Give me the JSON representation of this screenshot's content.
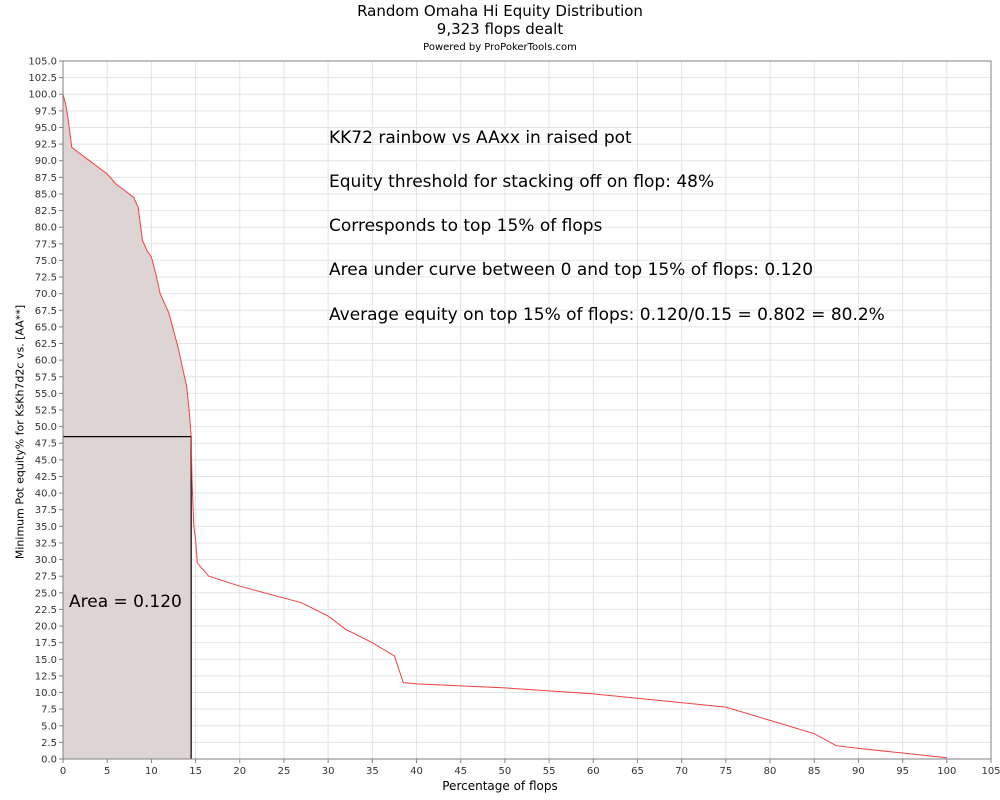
{
  "chart_data": {
    "type": "area",
    "title": "Random Omaha Hi Equity Distribution",
    "subtitle": "9,323 flops dealt",
    "credit": "Powered by ProPokerTools.com",
    "xlabel": "Percentage of flops",
    "ylabel": "Minimum Pot equity% for KsKh7d2c vs. [AA**]",
    "xlim": [
      0,
      105
    ],
    "ylim": [
      0,
      105
    ],
    "x_ticks": [
      "0",
      "5",
      "10",
      "15",
      "20",
      "25",
      "30",
      "35",
      "40",
      "45",
      "50",
      "55",
      "60",
      "65",
      "70",
      "75",
      "80",
      "85",
      "90",
      "95",
      "100",
      "105"
    ],
    "y_ticks": [
      "0.0",
      "2.5",
      "5.0",
      "7.5",
      "10.0",
      "12.5",
      "15.0",
      "17.5",
      "20.0",
      "22.5",
      "25.0",
      "27.5",
      "30.0",
      "32.5",
      "35.0",
      "37.5",
      "40.0",
      "42.5",
      "45.0",
      "47.5",
      "50.0",
      "52.5",
      "55.0",
      "57.5",
      "60.0",
      "62.5",
      "65.0",
      "67.5",
      "70.0",
      "72.5",
      "75.0",
      "77.5",
      "80.0",
      "82.5",
      "85.0",
      "87.5",
      "90.0",
      "92.5",
      "95.0",
      "97.5",
      "100.0",
      "102.5",
      "105.0"
    ],
    "series": [
      {
        "x": [
          0,
          0.3,
          0.5,
          1,
          2,
          3,
          4,
          5,
          6,
          7,
          8,
          8.5,
          9,
          9.5,
          10,
          10.5,
          11,
          11.5,
          12,
          12.5,
          13,
          13.5,
          14,
          14.3,
          14.5,
          14.6,
          14.8,
          15,
          15.2,
          16.5,
          20,
          27,
          30,
          32,
          35,
          37.5,
          38.5,
          40,
          50,
          60,
          75,
          80,
          85,
          87.5,
          90,
          95,
          100
        ],
        "y": [
          100.0,
          98.5,
          97,
          92,
          91,
          90,
          89,
          88,
          86.5,
          85.5,
          84.5,
          83,
          78,
          76.5,
          75.5,
          73,
          70,
          68.5,
          67,
          64.5,
          62,
          59,
          56,
          52,
          48.5,
          42,
          35,
          33,
          29.5,
          27.5,
          26,
          23.5,
          21.5,
          19.5,
          17.5,
          15.5,
          11.5,
          11.3,
          10.7,
          9.8,
          7.8,
          5.8,
          3.8,
          2.0,
          1.6,
          0.9,
          0.2
        ],
        "color": "#f04040"
      }
    ],
    "threshold": {
      "x": 14.5,
      "y": 48.5
    },
    "shaded_region": {
      "x_from": 0,
      "x_to": 14.5,
      "fill": "#ddd4d4"
    },
    "grid": true,
    "grid_color": "#e4e4e4"
  },
  "annotations": {
    "line1": "KK72 rainbow vs AAxx in raised pot",
    "line2": "Equity threshold for stacking off on flop: 48%",
    "line3": "Corresponds to top 15% of flops",
    "line4": "Area under curve between 0 and top 15% of flops: 0.120",
    "line5": "Average equity on top 15% of flops: 0.120/0.15 = 0.802 = 80.2%",
    "area_label": "Area = 0.120"
  }
}
